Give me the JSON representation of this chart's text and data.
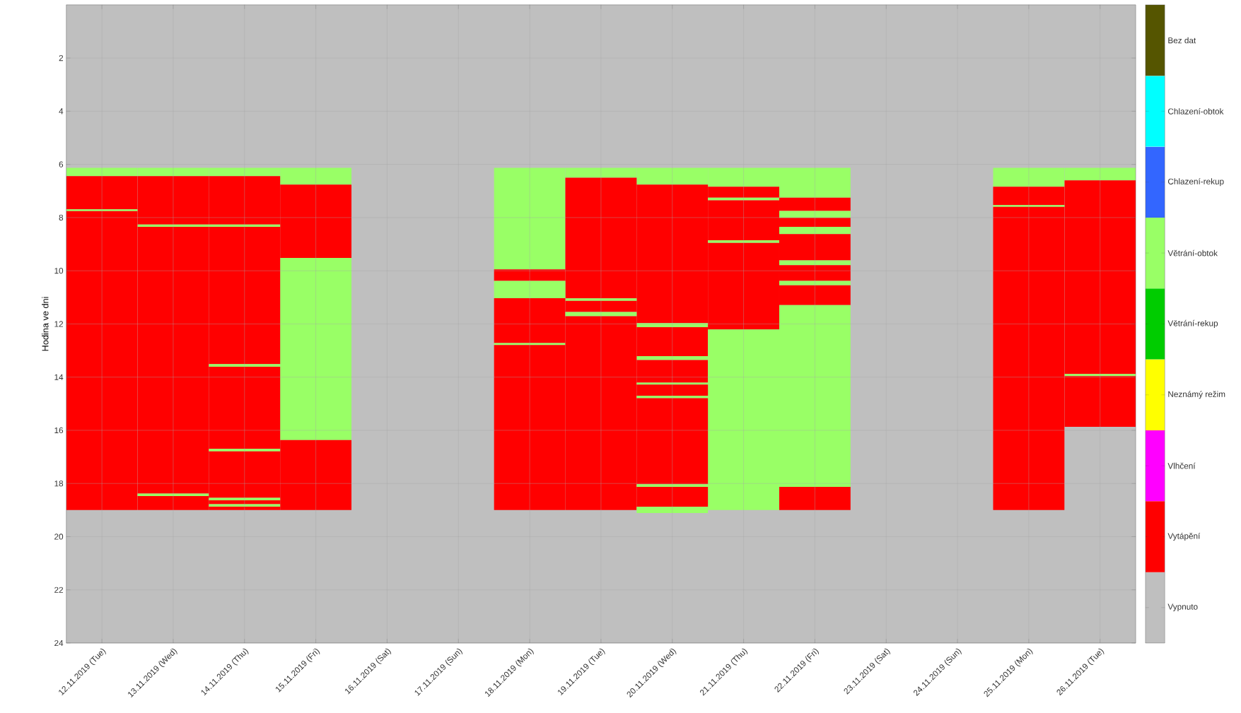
{
  "chart_data": {
    "type": "bar",
    "ylabel": "Hodina ve dni",
    "grid": true,
    "categories": [
      "12.11.2019 (Tue)",
      "13.11.2019 (Wed)",
      "14.11.2019 (Thu)",
      "15.11.2019 (Fri)",
      "16.11.2019 (Sat)",
      "17.11.2019 (Sun)",
      "18.11.2019 (Mon)",
      "19.11.2019 (Tue)",
      "20.11.2019 (Wed)",
      "21.11.2019 (Thu)",
      "22.11.2019 (Fri)",
      "23.11.2019 (Sat)",
      "24.11.2019 (Sun)",
      "25.11.2019 (Mon)",
      "26.11.2019 (Tue)"
    ],
    "ylim": [
      24,
      0
    ],
    "yticks": [
      2,
      4,
      6,
      8,
      10,
      12,
      14,
      16,
      18,
      20,
      22,
      24
    ],
    "clim": [
      0.5,
      9.5
    ],
    "cticks": [
      {
        "value": 1,
        "label": "Vypnuto"
      },
      {
        "value": 2,
        "label": "Vytápění"
      },
      {
        "value": 3,
        "label": "Vlhčení"
      },
      {
        "value": 4,
        "label": "Neznámý režim"
      },
      {
        "value": 5,
        "label": "Větrání-rekup"
      },
      {
        "value": 6,
        "label": "Větrání-obtok"
      },
      {
        "value": 7,
        "label": "Chlazení-rekup"
      },
      {
        "value": 8,
        "label": "Chlazení-obtok"
      },
      {
        "value": 9,
        "label": "Bez dat"
      }
    ],
    "colors": [
      "#bfbfbf",
      "#ff0000",
      "#ff00ff",
      "#ffff00",
      "#00cc00",
      "#99ff66",
      "#3366ff",
      "#00ffff",
      "#555500"
    ],
    "series": [
      {
        "color": "#99ff66",
        "base": [
          6.13,
          6.13,
          6.13,
          6.13,
          null,
          null,
          6.13,
          6.13,
          6.13,
          6.13,
          6.13,
          null,
          null,
          6.13,
          6.13
        ],
        "values": [
          0.31,
          0.31,
          0.31,
          0.63,
          null,
          null,
          3.82,
          0.37,
          0.63,
          0.71,
          1.12,
          null,
          null,
          0.71,
          0.47
        ]
      },
      {
        "color": "#ff0000",
        "base": [
          6.44,
          6.44,
          6.44,
          6.76,
          null,
          null,
          9.95,
          6.5,
          6.76,
          6.84,
          7.25,
          null,
          null,
          6.84,
          6.6
        ],
        "values": [
          1.25,
          1.82,
          1.82,
          2.76,
          null,
          null,
          0.43,
          4.54,
          5.21,
          0.41,
          0.5,
          null,
          null,
          0.69,
          7.28
        ]
      },
      {
        "color": "#99ff66",
        "base": [
          7.69,
          8.26,
          8.26,
          9.52,
          null,
          null,
          10.38,
          11.04,
          11.97,
          7.25,
          7.75,
          null,
          null,
          7.53,
          13.88
        ],
        "values": [
          0.07,
          0.09,
          0.09,
          6.85,
          null,
          null,
          0.65,
          0.09,
          0.15,
          0.1,
          0.26,
          null,
          null,
          0.07,
          0.08
        ]
      },
      {
        "color": "#ff0000",
        "base": [
          7.76,
          8.35,
          8.35,
          16.37,
          null,
          null,
          11.03,
          11.13,
          12.12,
          7.35,
          8.01,
          null,
          null,
          7.6,
          13.96
        ],
        "values": [
          11.24,
          10.03,
          5.16,
          2.63,
          null,
          null,
          1.69,
          0.42,
          1.09,
          1.5,
          0.34,
          null,
          null,
          11.4,
          1.91
        ]
      },
      {
        "color": "#99ff66",
        "base": [
          null,
          18.38,
          13.51,
          null,
          null,
          null,
          12.72,
          11.55,
          13.21,
          8.85,
          8.35,
          null,
          null,
          null,
          null
        ],
        "values": [
          null,
          0.09,
          0.1,
          null,
          null,
          null,
          0.07,
          0.16,
          0.15,
          0.1,
          0.27,
          null,
          null,
          null,
          null
        ]
      },
      {
        "color": "#ff0000",
        "base": [
          null,
          18.47,
          13.61,
          null,
          null,
          null,
          12.79,
          11.71,
          13.36,
          8.95,
          8.62,
          null,
          null,
          null,
          null
        ],
        "values": [
          null,
          0.53,
          3.09,
          null,
          null,
          null,
          6.21,
          7.29,
          0.85,
          3.26,
          0.99,
          null,
          null,
          null,
          null
        ]
      },
      {
        "color": "#99ff66",
        "base": [
          null,
          null,
          16.7,
          null,
          null,
          null,
          null,
          null,
          14.21,
          12.21,
          9.61,
          null,
          null,
          null,
          null
        ],
        "values": [
          null,
          null,
          0.09,
          null,
          null,
          null,
          null,
          null,
          0.07,
          6.79,
          0.18,
          null,
          null,
          null,
          null
        ]
      },
      {
        "color": "#ff0000",
        "base": [
          null,
          null,
          16.79,
          null,
          null,
          null,
          null,
          null,
          14.28,
          null,
          9.79,
          null,
          null,
          null,
          null
        ],
        "values": [
          null,
          null,
          1.75,
          null,
          null,
          null,
          null,
          null,
          0.42,
          null,
          0.59,
          null,
          null,
          null,
          null
        ]
      },
      {
        "color": "#99ff66",
        "base": [
          null,
          null,
          18.54,
          null,
          null,
          null,
          null,
          null,
          14.7,
          null,
          10.38,
          null,
          null,
          null,
          null
        ],
        "values": [
          null,
          null,
          0.09,
          null,
          null,
          null,
          null,
          null,
          0.09,
          null,
          0.17,
          null,
          null,
          null,
          null
        ]
      },
      {
        "color": "#ff0000",
        "base": [
          null,
          null,
          18.63,
          null,
          null,
          null,
          null,
          null,
          14.79,
          null,
          10.55,
          null,
          null,
          null,
          null
        ],
        "values": [
          null,
          null,
          0.15,
          null,
          null,
          null,
          null,
          null,
          3.24,
          null,
          0.74,
          null,
          null,
          null,
          null
        ]
      },
      {
        "color": "#99ff66",
        "base": [
          null,
          null,
          18.78,
          null,
          null,
          null,
          null,
          null,
          18.03,
          null,
          11.29,
          null,
          null,
          null,
          null
        ],
        "values": [
          null,
          null,
          0.09,
          null,
          null,
          null,
          null,
          null,
          0.1,
          null,
          6.84,
          null,
          null,
          null,
          null
        ]
      },
      {
        "color": "#ff0000",
        "base": [
          null,
          null,
          18.87,
          null,
          null,
          null,
          null,
          null,
          18.13,
          null,
          18.13,
          null,
          null,
          null,
          null
        ],
        "values": [
          null,
          null,
          0.13,
          null,
          null,
          null,
          null,
          null,
          0.75,
          null,
          0.87,
          null,
          null,
          null,
          null
        ]
      },
      {
        "color": "#99ff66",
        "base": [
          null,
          null,
          null,
          null,
          null,
          null,
          null,
          null,
          18.88,
          null,
          null,
          null,
          null,
          null,
          null
        ],
        "values": [
          null,
          null,
          null,
          null,
          null,
          null,
          null,
          null,
          0.23,
          null,
          null,
          null,
          null,
          null,
          null
        ]
      }
    ]
  }
}
